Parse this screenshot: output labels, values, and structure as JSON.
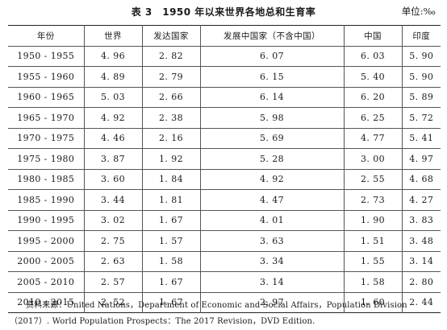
{
  "title": "表 3　1950 年以来世界各地总和生育率",
  "unit": "单位:‰",
  "columns": [
    "年份",
    "世界",
    "发达国家",
    "发展中国家（不含中国）",
    "中国",
    "印度"
  ],
  "rows": [
    [
      "1950 - 1955",
      "4. 96",
      "2. 82",
      "6. 07",
      "6. 03",
      "5. 90"
    ],
    [
      "1955 - 1960",
      "4. 89",
      "2. 79",
      "6. 15",
      "5. 40",
      "5. 90"
    ],
    [
      "1960 - 1965",
      "5. 03",
      "2. 66",
      "6. 14",
      "6. 20",
      "5. 89"
    ],
    [
      "1965 - 1970",
      "4. 92",
      "2. 38",
      "5. 98",
      "6. 25",
      "5. 72"
    ],
    [
      "1970 - 1975",
      "4. 46",
      "2. 16",
      "5. 69",
      "4. 77",
      "5. 41"
    ],
    [
      "1975 - 1980",
      "3. 87",
      "1. 92",
      "5. 28",
      "3. 00",
      "4. 97"
    ],
    [
      "1980 - 1985",
      "3. 60",
      "1. 84",
      "4. 92",
      "2. 55",
      "4. 68"
    ],
    [
      "1985 - 1990",
      "3. 44",
      "1. 81",
      "4. 47",
      "2. 73",
      "4. 27"
    ],
    [
      "1990 - 1995",
      "3. 02",
      "1. 67",
      "4. 01",
      "1. 90",
      "3. 83"
    ],
    [
      "1995 - 2000",
      "2. 75",
      "1. 57",
      "3. 63",
      "1. 51",
      "3. 48"
    ],
    [
      "2000 - 2005",
      "2. 63",
      "1. 58",
      "3. 34",
      "1. 55",
      "3. 14"
    ],
    [
      "2005 - 2010",
      "2. 57",
      "1. 67",
      "3. 14",
      "1. 58",
      "2. 80"
    ],
    [
      "2010 - 2015",
      "2. 52",
      "1. 67",
      "2. 97",
      "1. 60",
      "2. 44"
    ]
  ],
  "source": "资料来源：United Nations，Department of Economic and Social Affairs，Population Division（2017）. World Population Prospects：The 2017 Revision，DVD Edition."
}
